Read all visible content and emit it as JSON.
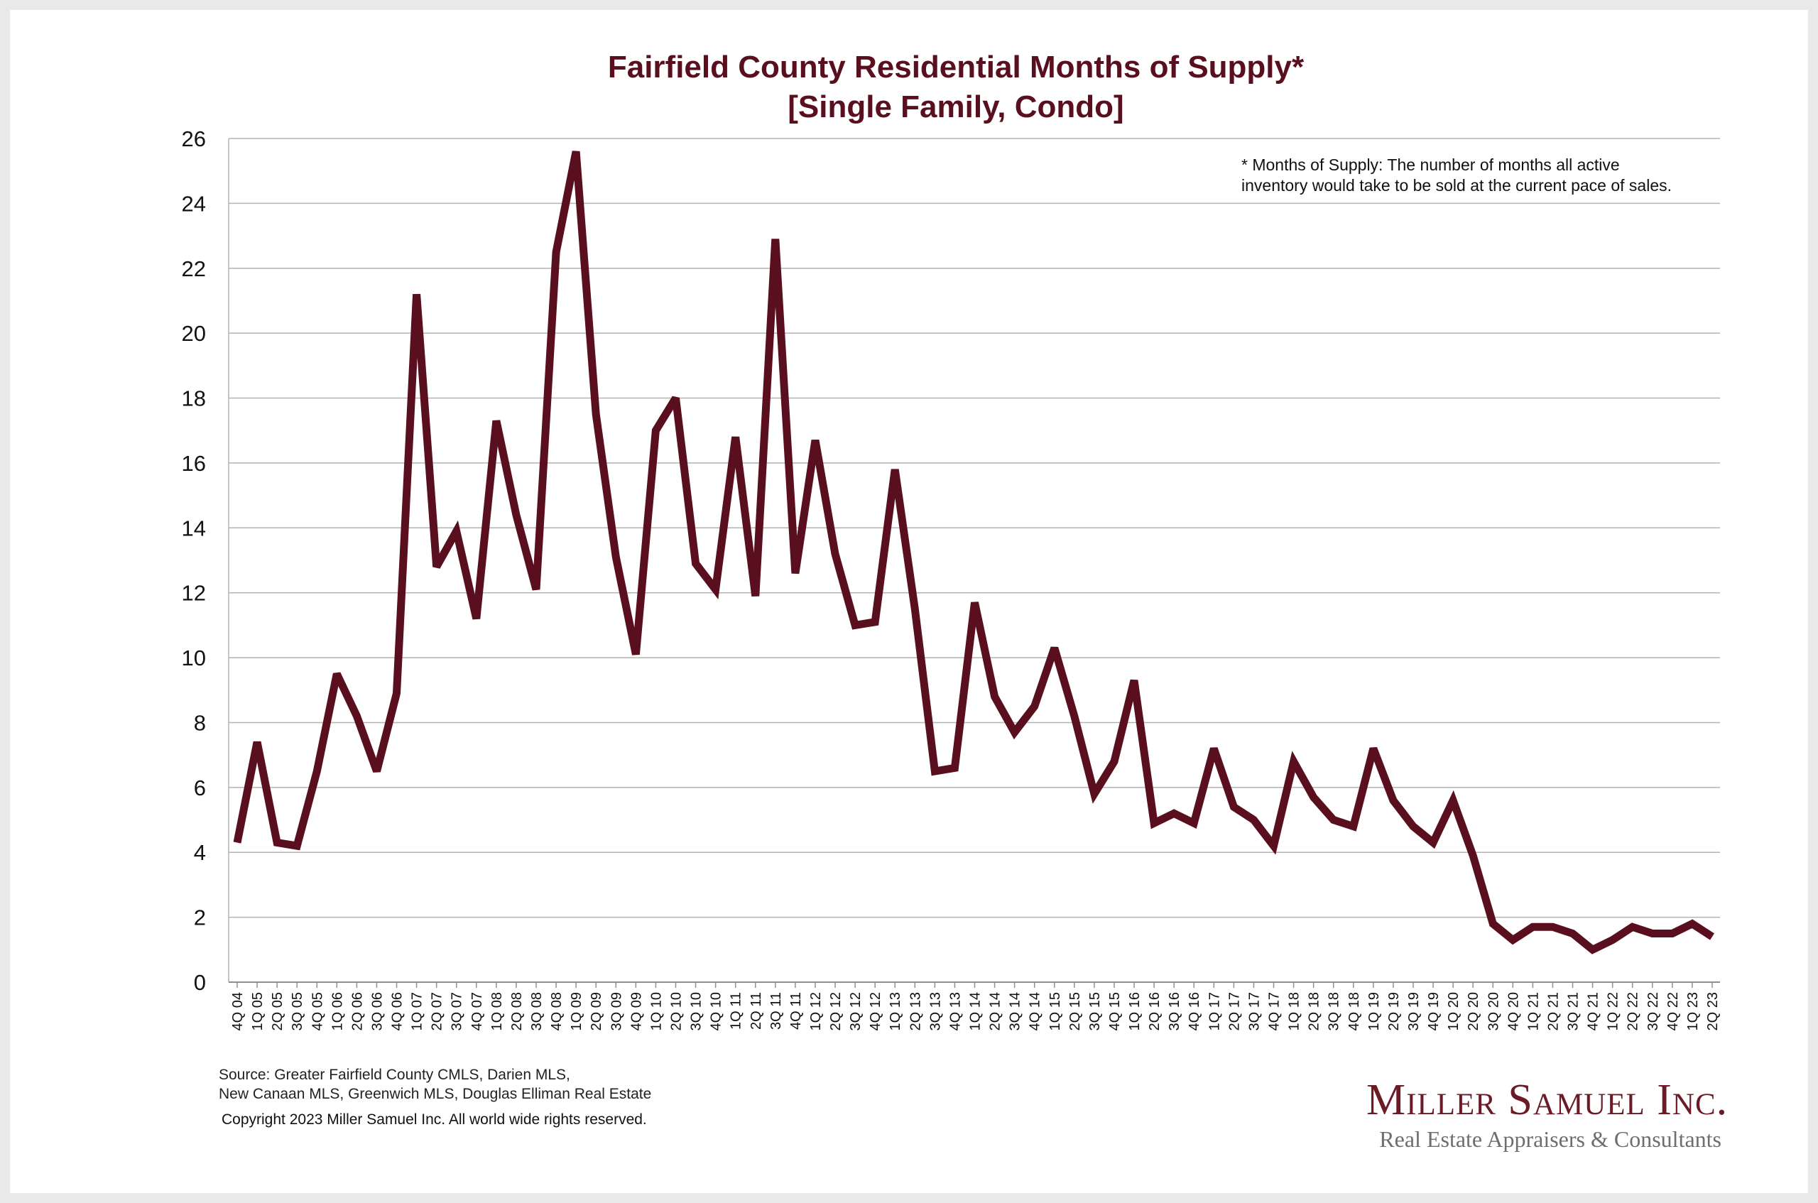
{
  "chart_data": {
    "type": "line",
    "title": "Fairfield County Residential Months of Supply*",
    "subtitle": "[Single Family, Condo]",
    "ylim": [
      0,
      26
    ],
    "yticks": [
      0,
      2,
      4,
      6,
      8,
      10,
      12,
      14,
      16,
      18,
      20,
      22,
      24,
      26
    ],
    "grid": true,
    "categories": [
      "4Q 04",
      "1Q 05",
      "2Q 05",
      "3Q 05",
      "4Q 05",
      "1Q 06",
      "2Q 06",
      "3Q 06",
      "4Q 06",
      "1Q 07",
      "2Q 07",
      "3Q 07",
      "4Q 07",
      "1Q 08",
      "2Q 08",
      "3Q 08",
      "4Q 08",
      "1Q 09",
      "2Q 09",
      "3Q 09",
      "4Q 09",
      "1Q 10",
      "2Q 10",
      "3Q 10",
      "4Q 10",
      "1Q 11",
      "2Q 11",
      "3Q 11",
      "4Q 11",
      "1Q 12",
      "2Q 12",
      "3Q 12",
      "4Q 12",
      "1Q 13",
      "2Q 13",
      "3Q 13",
      "4Q 13",
      "1Q 14",
      "2Q 14",
      "3Q 14",
      "4Q 14",
      "1Q 15",
      "2Q 15",
      "3Q 15",
      "4Q 15",
      "1Q 16",
      "2Q 16",
      "3Q 16",
      "4Q 16",
      "1Q 17",
      "2Q 17",
      "3Q 17",
      "4Q 17",
      "1Q 18",
      "2Q 18",
      "3Q 18",
      "4Q 18",
      "1Q 19",
      "2Q 19",
      "3Q 19",
      "4Q 19",
      "1Q 20",
      "2Q 20",
      "3Q 20",
      "4Q 20",
      "1Q 21",
      "2Q 21",
      "3Q 21",
      "4Q 21",
      "1Q 22",
      "2Q 22",
      "3Q 22",
      "4Q 22",
      "1Q 23",
      "2Q 23"
    ],
    "series": [
      {
        "values": [
          4.3,
          7.4,
          4.3,
          4.2,
          6.5,
          9.5,
          8.2,
          6.5,
          8.9,
          21.2,
          12.8,
          13.9,
          11.2,
          17.3,
          14.4,
          12.1,
          22.5,
          25.6,
          17.5,
          13.1,
          10.1,
          17.0,
          18.0,
          12.9,
          12.1,
          16.8,
          11.9,
          22.9,
          12.6,
          16.7,
          13.2,
          11.0,
          11.1,
          15.8,
          11.5,
          6.5,
          6.6,
          11.7,
          8.8,
          7.7,
          8.5,
          10.3,
          8.2,
          5.8,
          6.8,
          9.3,
          4.9,
          5.2,
          4.9,
          7.2,
          5.4,
          5.0,
          4.2,
          6.8,
          5.7,
          5.0,
          4.8,
          7.2,
          5.6,
          4.8,
          4.3,
          5.6,
          3.9,
          1.8,
          1.3,
          1.7,
          1.7,
          1.5,
          1.0,
          1.3,
          1.7,
          1.5,
          1.5,
          1.8,
          1.4
        ],
        "color": "#5a0f1f"
      }
    ],
    "annotation": [
      "* Months of Supply: The number of months all active",
      "inventory would take to be sold at the current pace of sales."
    ]
  },
  "source": [
    "Source:  Greater Fairfield County CMLS, Darien MLS,",
    "New Canaan MLS, Greenwich MLS, Douglas Elliman Real Estate"
  ],
  "copyright": "Copyright 2023 Miller Samuel Inc.  All world wide rights reserved.",
  "logo": {
    "name": "Miller Samuel Inc.",
    "tagline": "Real Estate Appraisers & Consultants"
  },
  "colors": {
    "line": "#5a0f1f",
    "title": "#5a0f1f",
    "grid": "#b3b3b3",
    "logo": "#6b1a26"
  }
}
